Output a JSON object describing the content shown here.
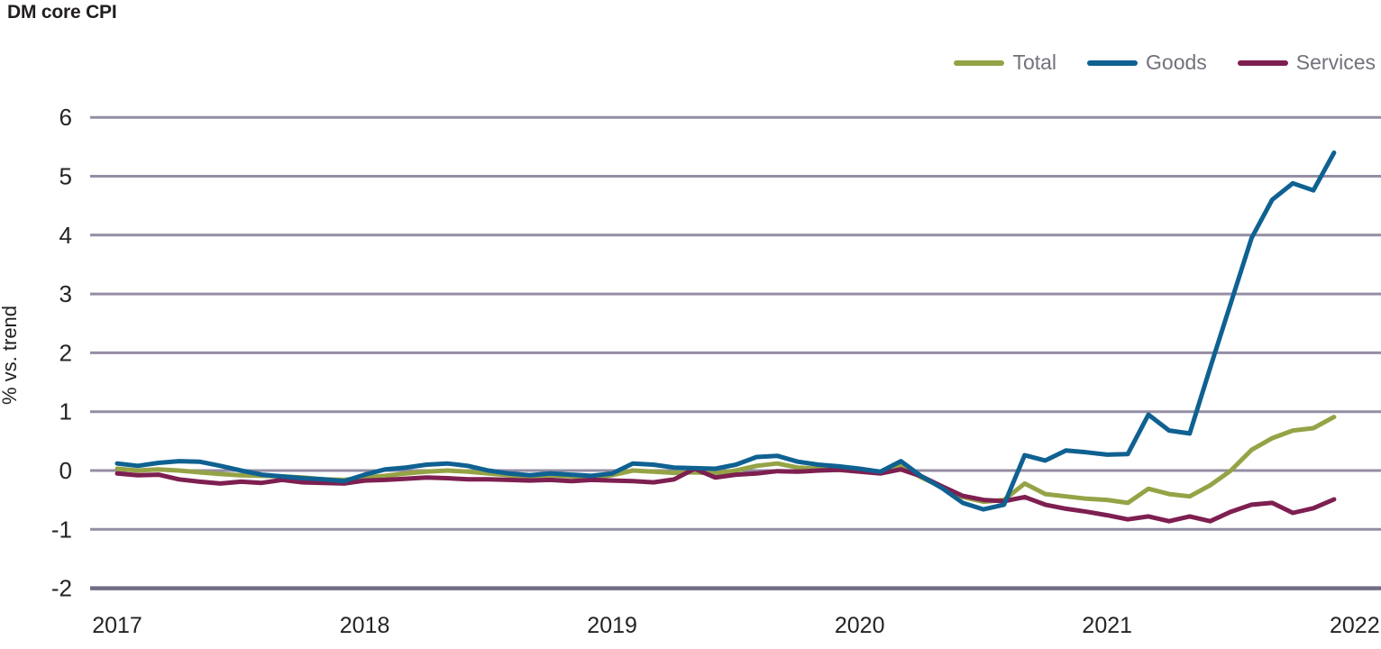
{
  "title": "DM core CPI",
  "axes": {
    "y_label": "% vs. trend",
    "y_ticks": [
      6,
      5,
      4,
      3,
      2,
      1,
      0,
      -1,
      -2
    ],
    "x_ticks": [
      "2017",
      "2018",
      "2019",
      "2020",
      "2021",
      "2022"
    ],
    "ylim": [
      -2,
      6
    ]
  },
  "legend": {
    "items": [
      {
        "label": "Total",
        "color": "#95a346"
      },
      {
        "label": "Goods",
        "color": "#0f6191"
      },
      {
        "label": "Services",
        "color": "#7e1f51"
      }
    ]
  },
  "colors": {
    "gridline": "#948da4",
    "baseline": "#726d87",
    "title_text": "#211e20",
    "tick_text": "#262326",
    "legend_text": "#73717c"
  },
  "chart_data": {
    "type": "line",
    "title": "DM core CPI",
    "ylabel": "% vs. trend",
    "ylim": [
      -2,
      6
    ],
    "grid": "horizontal",
    "legend_position": "top-right",
    "x_unit": "monthly",
    "x_range": "Jan 2017 - Dec 2021",
    "year_ticks": [
      "2017",
      "2018",
      "2019",
      "2020",
      "2021",
      "2022"
    ],
    "points_per_year": 12,
    "series": [
      {
        "name": "Total",
        "color": "#95a346",
        "values": [
          0.03,
          0.0,
          0.02,
          0.0,
          -0.03,
          -0.06,
          -0.08,
          -0.09,
          -0.1,
          -0.12,
          -0.15,
          -0.16,
          -0.12,
          -0.09,
          -0.05,
          -0.02,
          0.0,
          -0.02,
          -0.05,
          -0.08,
          -0.1,
          -0.08,
          -0.1,
          -0.12,
          -0.08,
          0.0,
          -0.02,
          -0.04,
          -0.03,
          -0.05,
          0.0,
          0.08,
          0.12,
          0.05,
          0.03,
          0.04,
          0.02,
          -0.02,
          0.08,
          -0.12,
          -0.28,
          -0.45,
          -0.53,
          -0.5,
          -0.22,
          -0.4,
          -0.44,
          -0.48,
          -0.5,
          -0.55,
          -0.31,
          -0.4,
          -0.44,
          -0.25,
          0.0,
          0.35,
          0.55,
          0.68,
          0.72,
          0.91
        ]
      },
      {
        "name": "Services",
        "color": "#7e1f51",
        "values": [
          -0.05,
          -0.08,
          -0.07,
          -0.15,
          -0.19,
          -0.22,
          -0.19,
          -0.21,
          -0.16,
          -0.2,
          -0.21,
          -0.22,
          -0.17,
          -0.16,
          -0.14,
          -0.12,
          -0.13,
          -0.15,
          -0.15,
          -0.16,
          -0.17,
          -0.16,
          -0.18,
          -0.16,
          -0.17,
          -0.18,
          -0.2,
          -0.15,
          0.03,
          -0.12,
          -0.07,
          -0.05,
          -0.01,
          -0.02,
          0.0,
          0.01,
          -0.02,
          -0.05,
          0.02,
          -0.1,
          -0.27,
          -0.43,
          -0.5,
          -0.52,
          -0.45,
          -0.58,
          -0.65,
          -0.7,
          -0.76,
          -0.83,
          -0.78,
          -0.86,
          -0.78,
          -0.86,
          -0.7,
          -0.58,
          -0.55,
          -0.72,
          -0.64,
          -0.49
        ]
      },
      {
        "name": "Goods",
        "color": "#0f6191",
        "values": [
          0.12,
          0.08,
          0.13,
          0.16,
          0.15,
          0.08,
          0.0,
          -0.07,
          -0.1,
          -0.13,
          -0.15,
          -0.18,
          -0.07,
          0.02,
          0.05,
          0.1,
          0.12,
          0.08,
          0.0,
          -0.05,
          -0.08,
          -0.05,
          -0.07,
          -0.09,
          -0.05,
          0.12,
          0.1,
          0.05,
          0.04,
          0.03,
          0.1,
          0.23,
          0.25,
          0.15,
          0.1,
          0.07,
          0.03,
          -0.02,
          0.16,
          -0.1,
          -0.3,
          -0.55,
          -0.66,
          -0.58,
          0.26,
          0.17,
          0.34,
          0.31,
          0.27,
          0.28,
          0.95,
          0.68,
          0.63,
          1.75,
          2.85,
          3.95,
          4.6,
          4.88,
          4.76,
          5.4
        ]
      }
    ]
  }
}
